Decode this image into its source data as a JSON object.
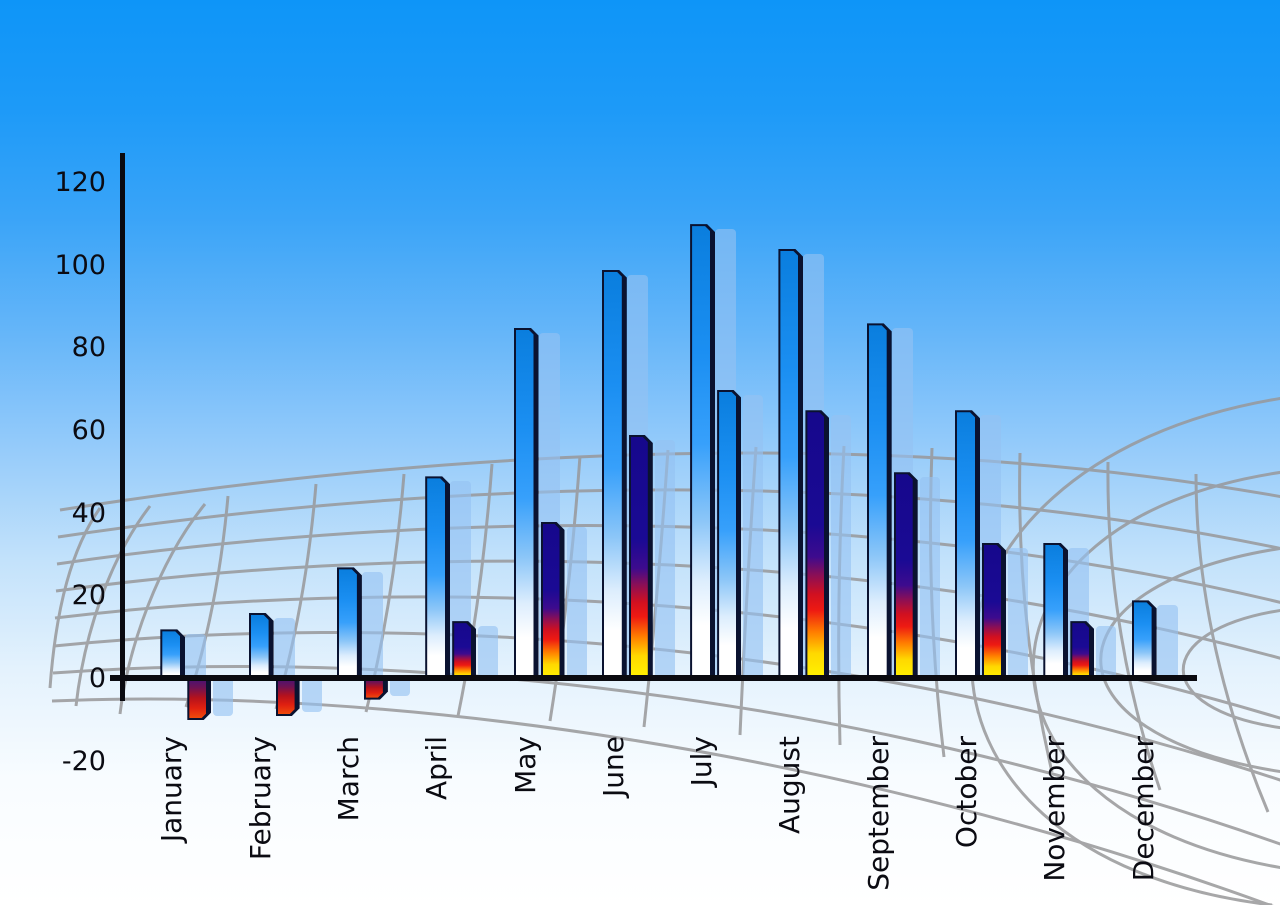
{
  "chart_data": {
    "type": "bar",
    "title": "",
    "xlabel": "",
    "ylabel": "",
    "categories": [
      "January",
      "February",
      "March",
      "April",
      "May",
      "June",
      "July",
      "August",
      "September",
      "October",
      "November",
      "December"
    ],
    "series": [
      {
        "name": "primary-blue-bars",
        "values": [
          12,
          16,
          27,
          49,
          85,
          99,
          110,
          104,
          86,
          65,
          33,
          19
        ],
        "style": "blue-white-gradient"
      },
      {
        "name": "secondary-bars",
        "values": [
          -10,
          -9,
          -5,
          14,
          38,
          59,
          70,
          65,
          50,
          33,
          14,
          null
        ],
        "style": "navy-red-yellow-gradient",
        "style_exceptions": {
          "July": "blue-white-gradient"
        }
      }
    ],
    "ylim": [
      -20,
      120
    ],
    "yticks": [
      120,
      100,
      80,
      60,
      40,
      20,
      0,
      -20
    ],
    "legend": "none",
    "grid": "decorative curved dome wireframe behind bars",
    "background": "sky blue gradient fading to white"
  },
  "colors": {
    "sky_top": "#0f96f9",
    "sky_bottom": "#ffffff",
    "bar_blue": "#1b8ff2",
    "bar_outline": "#0a1230",
    "hot_navy": "#1a0a94",
    "hot_red": "#ee1a12",
    "hot_yellow": "#fff500",
    "echo_bar": "#94c2f2",
    "grid_line": "#98989a",
    "axis": "#0a0a10",
    "label_text": "#0b0b12"
  }
}
